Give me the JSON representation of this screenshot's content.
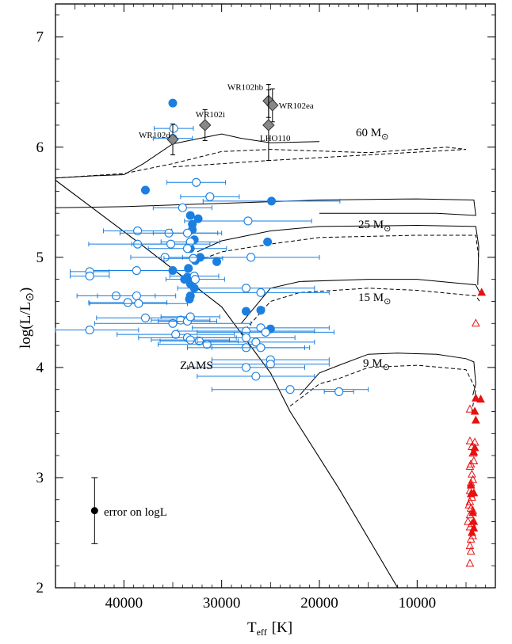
{
  "chart_data": {
    "type": "scatter",
    "xlabel": {
      "main": "T",
      "sub": "eff",
      "unit": "[K]"
    },
    "ylabel": {
      "main": "log(L/L",
      "sym": "⊙",
      "close": ")"
    },
    "xlim": [
      47000,
      2000
    ],
    "ylim": [
      2,
      7.3
    ],
    "x_ticks": [
      40000,
      30000,
      20000,
      10000
    ],
    "x_tick_labels": [
      "40000",
      "30000",
      "20000",
      "10000"
    ],
    "y_ticks": [
      2,
      3,
      4,
      5,
      6,
      7
    ],
    "y_tick_labels": [
      "2",
      "3",
      "4",
      "5",
      "6",
      "7"
    ],
    "annotations": {
      "zams": "ZAMS",
      "m60": "60 M",
      "m25": "25 M",
      "m15": "15 M",
      "m9": "9 M",
      "sun_symbol": "⊙",
      "error_label": "error on logL"
    },
    "error_bar": {
      "x": 43000,
      "y": 2.7,
      "yerr": 0.3
    },
    "colors": {
      "ob_stars": "#1a7fe0",
      "red_supergiants": "#e81010",
      "wr": "#888888"
    },
    "series": [
      {
        "marker": "filled-circle",
        "color": "#1a7fe0",
        "points": [
          [
            35000,
            6.4,
            0
          ],
          [
            37800,
            5.61,
            0
          ],
          [
            24900,
            5.51,
            7000
          ],
          [
            33200,
            5.38,
            0
          ],
          [
            32400,
            5.35,
            0
          ],
          [
            33000,
            5.3,
            0
          ],
          [
            33000,
            5.25,
            0
          ],
          [
            32800,
            5.16,
            0
          ],
          [
            25300,
            5.14,
            0
          ],
          [
            33200,
            5.08,
            0
          ],
          [
            32200,
            5.0,
            0
          ],
          [
            32700,
            4.97,
            0
          ],
          [
            30500,
            4.96,
            0
          ],
          [
            33400,
            4.9,
            0
          ],
          [
            35000,
            4.88,
            0
          ],
          [
            33500,
            4.82,
            0
          ],
          [
            33800,
            4.8,
            0
          ],
          [
            33200,
            4.76,
            0
          ],
          [
            32800,
            4.72,
            0
          ],
          [
            33200,
            4.65,
            0
          ],
          [
            33300,
            4.62,
            0
          ],
          [
            26000,
            4.52,
            0
          ],
          [
            27500,
            4.51,
            0
          ],
          [
            25000,
            4.35,
            0
          ]
        ]
      },
      {
        "marker": "open-circle",
        "color": "#1a7fe0",
        "points": [
          [
            34900,
            6.17,
            2000
          ],
          [
            35000,
            6.08,
            2000
          ],
          [
            32600,
            5.68,
            3000
          ],
          [
            31200,
            5.55,
            3000
          ],
          [
            34000,
            5.45,
            3000
          ],
          [
            27300,
            5.33,
            6500
          ],
          [
            38600,
            5.24,
            3500
          ],
          [
            35400,
            5.22,
            5000
          ],
          [
            33500,
            5.22,
            3500
          ],
          [
            33200,
            5.14,
            3000
          ],
          [
            38600,
            5.12,
            5000
          ],
          [
            35200,
            5.12,
            4000
          ],
          [
            33500,
            5.08,
            4000
          ],
          [
            35800,
            5.0,
            3500
          ],
          [
            32900,
            4.99,
            3000
          ],
          [
            27000,
            5.0,
            7000
          ],
          [
            38700,
            4.88,
            5000
          ],
          [
            43500,
            4.87,
            2000
          ],
          [
            43500,
            4.83,
            2000
          ],
          [
            32800,
            4.83,
            2500
          ],
          [
            32700,
            4.8,
            3000
          ],
          [
            27500,
            4.72,
            7000
          ],
          [
            26000,
            4.68,
            7000
          ],
          [
            40800,
            4.65,
            4000
          ],
          [
            38700,
            4.65,
            4000
          ],
          [
            39600,
            4.59,
            4000
          ],
          [
            38500,
            4.58,
            5000
          ],
          [
            37800,
            4.45,
            5000
          ],
          [
            35000,
            4.4,
            8000
          ],
          [
            34200,
            4.43,
            3000
          ],
          [
            33500,
            4.42,
            3000
          ],
          [
            33200,
            4.46,
            3000
          ],
          [
            26000,
            4.36,
            7000
          ],
          [
            27500,
            4.33,
            7000
          ],
          [
            25500,
            4.32,
            7000
          ],
          [
            43500,
            4.34,
            5000
          ],
          [
            34700,
            4.3,
            6000
          ],
          [
            33500,
            4.27,
            5000
          ],
          [
            33200,
            4.25,
            4000
          ],
          [
            32300,
            4.24,
            4000
          ],
          [
            31500,
            4.21,
            5000
          ],
          [
            27500,
            4.27,
            5000
          ],
          [
            26500,
            4.23,
            6000
          ],
          [
            27500,
            4.18,
            6000
          ],
          [
            26000,
            4.18,
            5000
          ],
          [
            25000,
            4.07,
            6000
          ],
          [
            25000,
            4.03,
            6000
          ],
          [
            27500,
            4.0,
            6000
          ],
          [
            26500,
            3.92,
            6000
          ],
          [
            23000,
            3.8,
            8000
          ],
          [
            18000,
            3.78,
            1500
          ]
        ]
      },
      {
        "marker": "filled-triangle",
        "color": "#e81010",
        "points": [
          [
            3400,
            4.68
          ],
          [
            4000,
            3.72
          ],
          [
            3500,
            3.71
          ],
          [
            4100,
            3.6
          ],
          [
            4000,
            3.52
          ],
          [
            4100,
            3.27
          ],
          [
            4200,
            3.23
          ],
          [
            4500,
            2.93
          ],
          [
            4200,
            2.86
          ],
          [
            4500,
            2.85
          ],
          [
            4300,
            2.68
          ],
          [
            4200,
            2.6
          ],
          [
            4200,
            2.54
          ],
          [
            4400,
            2.5
          ]
        ]
      },
      {
        "marker": "open-triangle",
        "color": "#e81010",
        "points": [
          [
            4000,
            4.4
          ],
          [
            4600,
            3.62
          ],
          [
            4600,
            3.33
          ],
          [
            4100,
            3.32
          ],
          [
            4400,
            3.28
          ],
          [
            4300,
            3.22
          ],
          [
            4200,
            3.15
          ],
          [
            4500,
            3.12
          ],
          [
            4600,
            3.1
          ],
          [
            4400,
            3.03
          ],
          [
            4300,
            2.98
          ],
          [
            4500,
            2.95
          ],
          [
            4600,
            2.88
          ],
          [
            4400,
            2.82
          ],
          [
            4600,
            2.78
          ],
          [
            4700,
            2.75
          ],
          [
            4500,
            2.72
          ],
          [
            4300,
            2.7
          ],
          [
            4600,
            2.66
          ],
          [
            4800,
            2.6
          ],
          [
            4400,
            2.58
          ],
          [
            4600,
            2.55
          ],
          [
            4300,
            2.47
          ],
          [
            4500,
            2.44
          ],
          [
            4600,
            2.38
          ],
          [
            4500,
            2.33
          ],
          [
            4600,
            2.22
          ]
        ]
      }
    ],
    "wr_stars": [
      {
        "name": "WR102hb",
        "x": 25200,
        "y": 6.42,
        "yerr": 0.15
      },
      {
        "name": "WR102ea",
        "x": 24800,
        "y": 6.38,
        "yerr": 0.15
      },
      {
        "name": "WR102i",
        "x": 31700,
        "y": 6.2,
        "yerr": 0.14
      },
      {
        "name": "LHO110",
        "x": 25200,
        "y": 6.2,
        "yerr": 0.32
      },
      {
        "name": "WR102d",
        "x": 35000,
        "y": 6.07,
        "yerr": 0.14
      }
    ],
    "zams_line": [
      [
        47000,
        5.7
      ],
      [
        38000,
        5.1
      ],
      [
        30000,
        4.55
      ],
      [
        25000,
        3.95
      ],
      [
        23000,
        3.6
      ],
      [
        18000,
        2.9
      ],
      [
        12000,
        2.0
      ]
    ],
    "tracks_solid": [
      [
        [
          47000,
          5.72
        ],
        [
          43000,
          5.74
        ],
        [
          40000,
          5.75
        ],
        [
          38000,
          5.85
        ],
        [
          35000,
          6.03
        ],
        [
          30000,
          6.12
        ],
        [
          28000,
          6.08
        ],
        [
          25000,
          6.04
        ],
        [
          20000,
          6.05
        ]
      ],
      [
        [
          47000,
          5.45
        ],
        [
          40000,
          5.46
        ],
        [
          30000,
          5.49
        ],
        [
          20000,
          5.52
        ],
        [
          10000,
          5.53
        ],
        [
          4200,
          5.52
        ],
        [
          4000,
          5.38
        ],
        [
          8000,
          5.4
        ],
        [
          20000,
          5.4
        ]
      ],
      [
        [
          32500,
          5.05
        ],
        [
          30000,
          5.15
        ],
        [
          25000,
          5.24
        ],
        [
          20000,
          5.28
        ],
        [
          10000,
          5.29
        ],
        [
          4000,
          5.28
        ],
        [
          3700,
          5.1
        ],
        [
          3800,
          4.75
        ]
      ],
      [
        [
          28000,
          4.4
        ],
        [
          25000,
          4.72
        ],
        [
          22000,
          4.78
        ],
        [
          15000,
          4.8
        ],
        [
          10000,
          4.8
        ],
        [
          4000,
          4.75
        ],
        [
          3600,
          4.68
        ]
      ],
      [
        [
          22000,
          3.75
        ],
        [
          20000,
          3.95
        ],
        [
          18000,
          4.02
        ],
        [
          15000,
          4.12
        ],
        [
          12000,
          4.13
        ],
        [
          8000,
          4.12
        ],
        [
          5000,
          4.08
        ],
        [
          4200,
          4.05
        ],
        [
          4000,
          3.85
        ],
        [
          4300,
          3.75
        ]
      ]
    ],
    "tracks_dashed": [
      [
        [
          47000,
          5.72
        ],
        [
          40000,
          5.76
        ],
        [
          35000,
          5.85
        ],
        [
          30000,
          5.96
        ],
        [
          25000,
          5.98
        ],
        [
          15000,
          5.95
        ],
        [
          7000,
          6.0
        ],
        [
          5000,
          5.98
        ],
        [
          15000,
          5.93
        ],
        [
          25000,
          5.88
        ],
        [
          35000,
          5.82
        ]
      ],
      [
        [
          33000,
          4.95
        ],
        [
          30000,
          5.05
        ],
        [
          25000,
          5.12
        ],
        [
          20000,
          5.18
        ],
        [
          10000,
          5.2
        ],
        [
          4000,
          5.2
        ],
        [
          3700,
          5.0
        ]
      ],
      [
        [
          28000,
          4.3
        ],
        [
          25000,
          4.6
        ],
        [
          22000,
          4.68
        ],
        [
          15000,
          4.72
        ],
        [
          10000,
          4.7
        ],
        [
          4000,
          4.65
        ],
        [
          3600,
          4.6
        ]
      ],
      [
        [
          23000,
          3.65
        ],
        [
          20000,
          3.85
        ],
        [
          18000,
          3.9
        ],
        [
          15000,
          4.0
        ],
        [
          10000,
          4.02
        ],
        [
          5000,
          3.98
        ],
        [
          4000,
          3.8
        ],
        [
          4400,
          3.6
        ]
      ]
    ]
  }
}
